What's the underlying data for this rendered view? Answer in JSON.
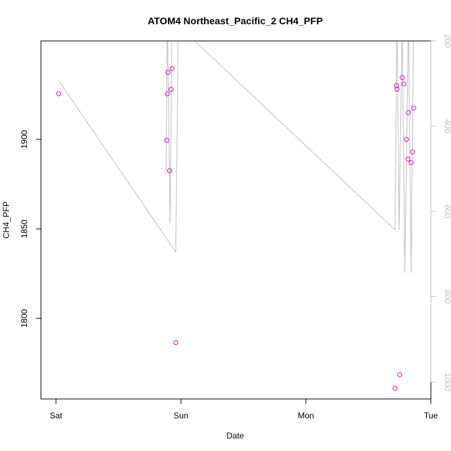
{
  "chart_data": {
    "type": "scatter",
    "title": "ATOM4 Northeast_Pacific_2 CH4_PFP",
    "xlabel": "Date",
    "ylabel": "CH4_PFP",
    "x_ticks": [
      "Sat",
      "Sun",
      "Mon",
      "Tue"
    ],
    "x_tick_hours": [
      0,
      24,
      48,
      72
    ],
    "xlim_hours": [
      -2.9,
      72.0
    ],
    "y_ticks": [
      1800,
      1850,
      1900
    ],
    "ylim": [
      1755,
      1955
    ],
    "y2_ticks": [
      200,
      400,
      600,
      800,
      1000
    ],
    "y2lim": [
      1040,
      200
    ],
    "y2_inverted": true,
    "grid": false,
    "colors": {
      "points": "#e60abe",
      "line": "#bebebe",
      "axis": "#000000",
      "right_axis": "#bebebe"
    },
    "series": [
      {
        "points_hours": [
          0.5,
          21.3,
          21.4,
          21.5,
          21.8,
          22.1,
          22.3,
          23.0,
          65.1,
          65.4,
          65.5,
          66.0,
          66.5,
          66.8,
          67.3,
          67.6,
          67.7,
          68.2,
          68.5,
          68.7
        ],
        "values": [
          1925.5,
          1899.5,
          1925.5,
          1937.5,
          1882.5,
          1928.0,
          1939.5,
          1786.5,
          1761.0,
          1930.0,
          1928.0,
          1768.5,
          1934.5,
          1931.0,
          1900.0,
          1889.0,
          1915.0,
          1887.0,
          1893.0,
          1917.5
        ]
      },
      {
        "line_hours": [
          0.5,
          23.0,
          23.5,
          23.0,
          22.3,
          21.9,
          21.4,
          21.1,
          21.4,
          21.9,
          22.3,
          65.1,
          65.5,
          65.9,
          66.5,
          67.0,
          67.7,
          68.2,
          68.7
        ],
        "pressure": [
          293,
          695,
          150,
          150,
          150,
          627,
          150,
          513,
          150,
          150,
          150,
          643,
          150,
          643,
          150,
          743,
          150,
          743,
          150
        ]
      }
    ]
  }
}
